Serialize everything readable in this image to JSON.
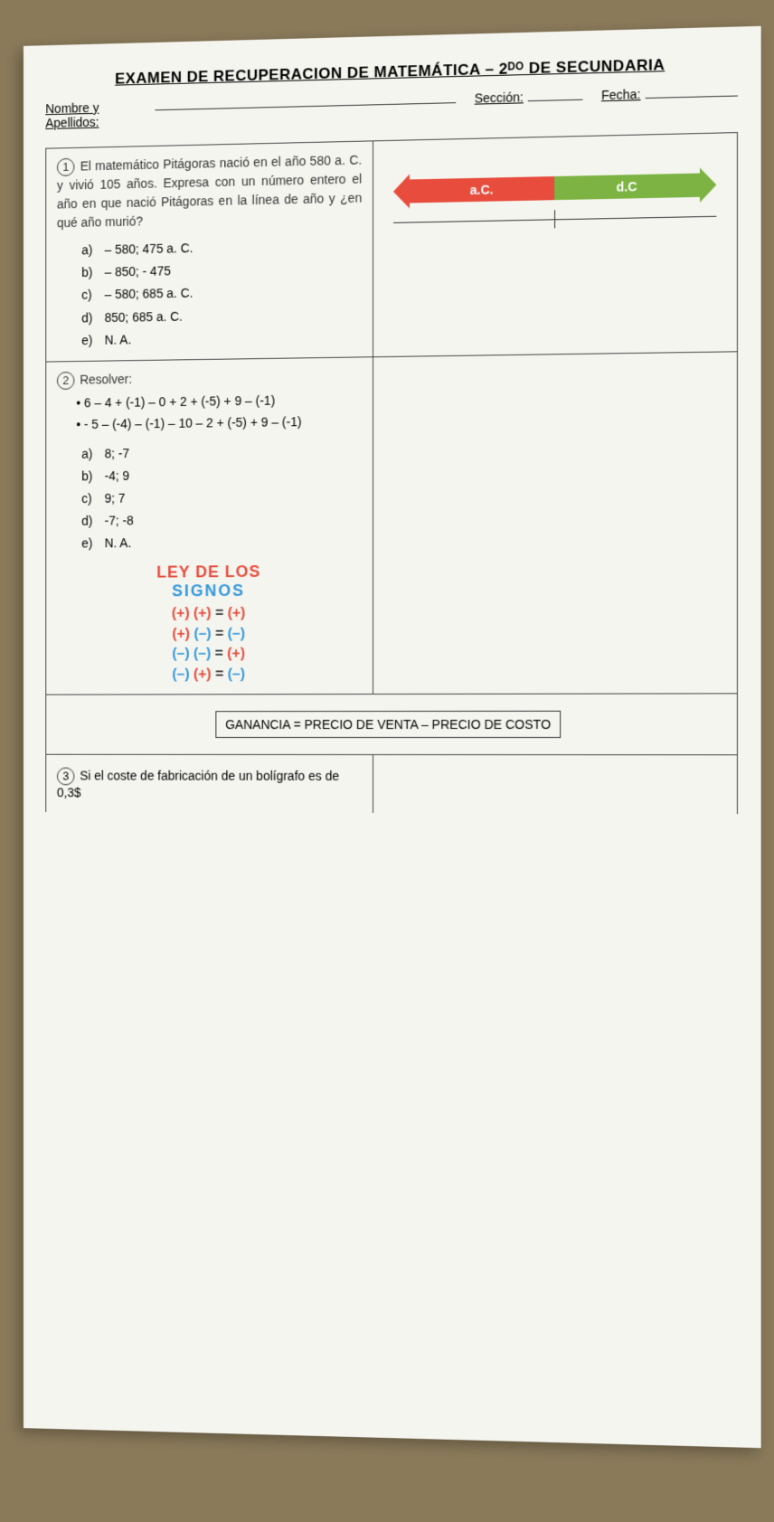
{
  "title": "EXAMEN DE RECUPERACION DE MATEMÁTICA – 2ᴰᴼ DE SECUNDARIA",
  "header": {
    "nombre_label": "Nombre y Apellidos:",
    "seccion_label": "Sección:",
    "fecha_label": "Fecha:"
  },
  "q1": {
    "num": "1",
    "text": "El matemático Pitágoras nació en el año 580 a. C. y vivió 105 años. Expresa con un número entero el año en que nació Pitágoras en la línea de año y ¿en qué año murió?",
    "options": [
      {
        "letter": "a)",
        "text": "– 580; 475 a. C."
      },
      {
        "letter": "b)",
        "text": "– 850; - 475"
      },
      {
        "letter": "c)",
        "text": "– 580; 685 a. C."
      },
      {
        "letter": "d)",
        "text": "850; 685 a. C."
      },
      {
        "letter": "e)",
        "text": "N. A."
      }
    ]
  },
  "timeline": {
    "left_label": "a.C.",
    "left_color": "#e74c3c",
    "right_label": "d.C",
    "right_color": "#7cb342"
  },
  "q2": {
    "num": "2",
    "label": "Resolver:",
    "exprs": [
      "6 – 4 + (-1) – 0 + 2 + (-5) + 9 – (-1)",
      "- 5 – (-4) – (-1) – 10 – 2 + (-5) + 9 – (-1)"
    ],
    "options": [
      {
        "letter": "a)",
        "text": "8; -7"
      },
      {
        "letter": "b)",
        "text": "-4; 9"
      },
      {
        "letter": "c)",
        "text": "9; 7"
      },
      {
        "letter": "d)",
        "text": "-7; -8"
      },
      {
        "letter": "e)",
        "text": "N. A."
      }
    ],
    "signs": {
      "title": "LEY DE LOS",
      "sub": "SIGNOS",
      "rules": [
        {
          "a": "(+)",
          "b": "(+)",
          "r": "(+)",
          "ca": "red",
          "cb": "red",
          "cr": "red"
        },
        {
          "a": "(+)",
          "b": "(–)",
          "r": "(–)",
          "ca": "red",
          "cb": "blue",
          "cr": "blue"
        },
        {
          "a": "(–)",
          "b": "(–)",
          "r": "(+)",
          "ca": "blue",
          "cb": "blue",
          "cr": "red"
        },
        {
          "a": "(–)",
          "b": "(+)",
          "r": "(–)",
          "ca": "blue",
          "cb": "red",
          "cr": "blue"
        }
      ]
    }
  },
  "formula": "GANANCIA = PRECIO DE VENTA – PRECIO DE COSTO",
  "q3": {
    "num": "3",
    "text": "Si el coste de fabricación de un bolígrafo es de 0,3$"
  },
  "colors": {
    "paper": "#f5f5f0",
    "text": "#333333",
    "red": "#e74c3c",
    "blue": "#3498db",
    "green": "#7cb342",
    "bg": "#8a7a5a"
  }
}
